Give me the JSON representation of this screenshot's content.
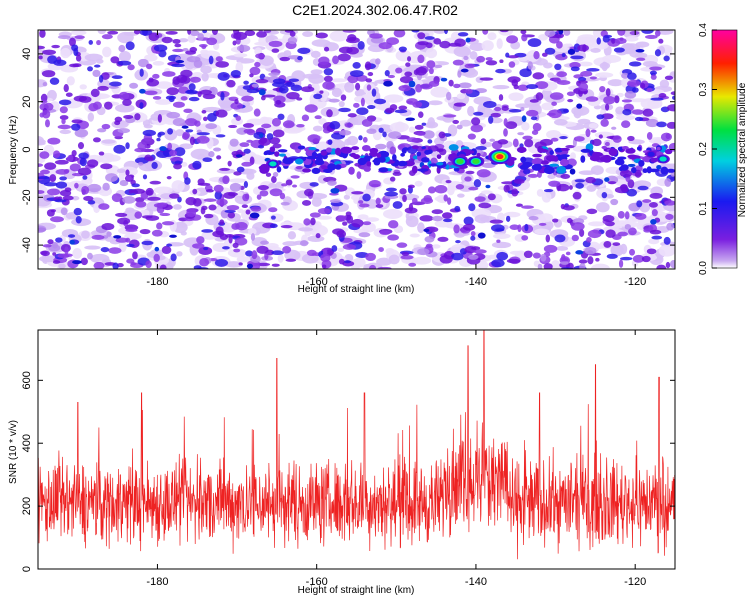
{
  "title": "C2E1.2024.302.06.47.R02",
  "chart_data": [
    {
      "type": "heatmap",
      "title": "C2E1.2024.302.06.47.R02",
      "xlabel": "Height of straight line (km)",
      "ylabel": "Frequency (Hz)",
      "xlim": [
        -195,
        -115
      ],
      "ylim": [
        -50,
        50
      ],
      "xticks": [
        -180,
        -160,
        -140,
        -120
      ],
      "yticks": [
        -40,
        -20,
        0,
        20,
        40
      ],
      "colorbar": {
        "label": "Normalized spectral amplitude",
        "range": [
          0.0,
          0.4
        ],
        "ticks": [
          "0.0",
          "0.1",
          "0.2",
          "0.3",
          "0.4"
        ],
        "colormap": "white-purple-blue-cyan-green-yellow-red-magenta"
      },
      "hotspots": [
        {
          "x": -142,
          "y": -5,
          "value": 0.25
        },
        {
          "x": -140,
          "y": -5,
          "value": 0.22
        },
        {
          "x": -137,
          "y": -3,
          "value": 0.35
        },
        {
          "x": -165.5,
          "y": -6,
          "value": 0.2
        },
        {
          "x": -116.5,
          "y": -4,
          "value": 0.2
        },
        {
          "x": -118,
          "y": -2,
          "value": 0.15
        },
        {
          "x": -124,
          "y": -4,
          "value": 0.12
        },
        {
          "x": -155,
          "y": -3,
          "value": 0.12
        }
      ]
    },
    {
      "type": "line",
      "xlabel": "Height of straight line (km)",
      "ylabel": "SNR (10 * v/v)",
      "xlim": [
        -195,
        -115
      ],
      "ylim": [
        0,
        760
      ],
      "xticks": [
        -180,
        -160,
        -140,
        -120
      ],
      "yticks": [
        0,
        200,
        400,
        600
      ],
      "series_color": "#ee2222",
      "baseline_mean": 210,
      "noise_amplitude": 130,
      "peaks": [
        {
          "x": -165,
          "y": 670
        },
        {
          "x": -141,
          "y": 710
        },
        {
          "x": -139,
          "y": 760
        },
        {
          "x": -125,
          "y": 650
        },
        {
          "x": -117,
          "y": 610
        },
        {
          "x": -154,
          "y": 560
        },
        {
          "x": -182,
          "y": 560
        },
        {
          "x": -190,
          "y": 530
        },
        {
          "x": -132,
          "y": 560
        }
      ]
    }
  ]
}
